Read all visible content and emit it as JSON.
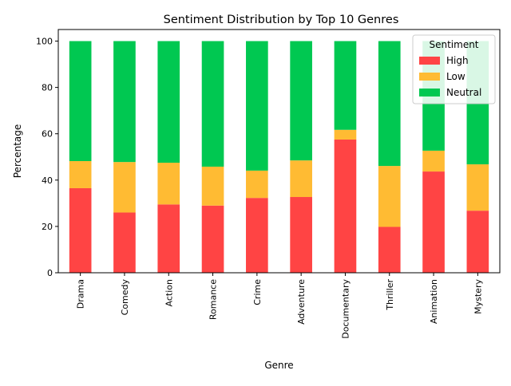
{
  "chart_data": {
    "type": "bar",
    "stacked": true,
    "title": "Sentiment Distribution by Top 10 Genres",
    "xlabel": "Genre",
    "ylabel": "Percentage",
    "ylim": [
      0,
      105
    ],
    "yticks": [
      0,
      20,
      40,
      60,
      80,
      100
    ],
    "grid": false,
    "legend_title": "Sentiment",
    "legend_position": "top-right",
    "categories": [
      "Drama",
      "Comedy",
      "Action",
      "Romance",
      "Crime",
      "Adventure",
      "Documentary",
      "Thriller",
      "Animation",
      "Mystery"
    ],
    "series": [
      {
        "name": "High",
        "color": "#FF4444",
        "values": [
          36.5,
          26.0,
          29.5,
          29.0,
          32.3,
          32.7,
          57.5,
          19.8,
          43.7,
          26.8
        ]
      },
      {
        "name": "Low",
        "color": "#FFBB33",
        "values": [
          11.7,
          21.8,
          18.0,
          16.8,
          11.8,
          15.8,
          4.2,
          26.3,
          9.0,
          20.0
        ]
      },
      {
        "name": "Neutral",
        "color": "#00C851",
        "values": [
          51.8,
          52.2,
          52.5,
          54.2,
          55.9,
          51.5,
          38.3,
          53.9,
          47.3,
          53.2
        ]
      }
    ]
  }
}
